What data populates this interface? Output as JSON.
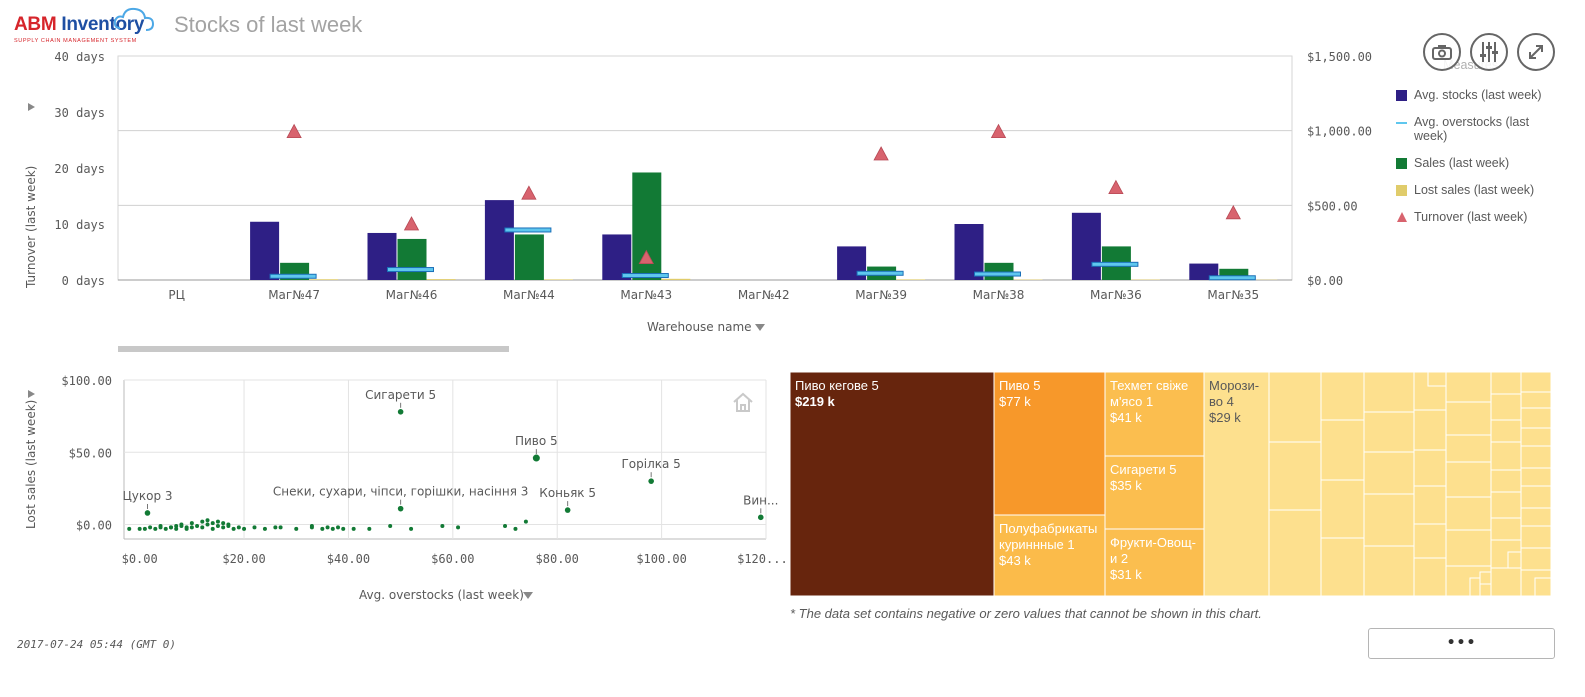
{
  "header": {
    "logo_text_1": "ABM",
    "logo_text_2": " Inventory",
    "logo_subtitle": "SUPPLY CHAIN MANAGEMENT SYSTEM",
    "title": "Stocks of last week"
  },
  "toolbar": {
    "buttons": [
      {
        "name": "snapshot",
        "icon": "camera-icon"
      },
      {
        "name": "settings",
        "icon": "sliders-icon"
      },
      {
        "name": "fullscreen",
        "icon": "expand-icon"
      }
    ]
  },
  "combo_chart": {
    "legend_title": "Measures",
    "legend": [
      {
        "label": "Avg. stocks (last week)",
        "color": "#2e1f85",
        "shape": "square"
      },
      {
        "label": "Avg. overstocks (last week)",
        "color": "#5fc7ee",
        "shape": "line"
      },
      {
        "label": "Sales (last week)",
        "color": "#127a35",
        "shape": "square"
      },
      {
        "label": "Lost sales (last week)",
        "color": "#e0cc6b",
        "shape": "square"
      },
      {
        "label": "Turnover (last week)",
        "color": "#d8636e",
        "shape": "triangle"
      }
    ],
    "y_left_label": "Turnover (last week)",
    "x_label": "Warehouse name",
    "y_left_ticks": [
      "40 days",
      "30 days",
      "20 days",
      "10 days",
      "0 days"
    ],
    "y_right_ticks": [
      "$1,500.00",
      "$1,000.00",
      "$500.00",
      "$0.00"
    ]
  },
  "chart_data": [
    {
      "type": "bar",
      "categories": [
        "РЦ",
        "Маг№47",
        "Маг№46",
        "Маг№44",
        "Маг№43",
        "Маг№42",
        "Маг№39",
        "Маг№38",
        "Маг№36",
        "Маг№35"
      ],
      "xlabel": "Warehouse name",
      "ylabel": "Turnover (last week)",
      "ylim_left": [
        0,
        40
      ],
      "ylim_right": [
        0,
        1500
      ],
      "series": [
        {
          "name": "Avg. stocks (last week)",
          "axis": "right",
          "values": [
            0,
            390,
            315,
            535,
            305,
            0,
            225,
            375,
            450,
            110
          ]
        },
        {
          "name": "Avg. overstocks (last week)",
          "axis": "right",
          "values": [
            0,
            25,
            70,
            335,
            30,
            0,
            45,
            40,
            105,
            15
          ]
        },
        {
          "name": "Sales (last week)",
          "axis": "right",
          "values": [
            0,
            115,
            275,
            305,
            720,
            0,
            90,
            115,
            225,
            75
          ]
        },
        {
          "name": "Lost sales (last week)",
          "axis": "right",
          "values": [
            0,
            5,
            6,
            4,
            8,
            0,
            4,
            3,
            3,
            2
          ]
        },
        {
          "name": "Turnover (last week)",
          "axis": "left",
          "values": [
            null,
            26.5,
            10,
            15.5,
            4,
            null,
            22.5,
            26.5,
            16.5,
            12
          ]
        }
      ],
      "legend": "right",
      "grid": true
    },
    {
      "type": "scatter",
      "xlabel": "Avg. overstocks (last week)",
      "ylabel": "Lost sales (last week)",
      "xlim": [
        -3,
        120
      ],
      "ylim": [
        -10,
        100
      ],
      "x_ticks": [
        "$0.00",
        "$20.00",
        "$40.00",
        "$60.00",
        "$80.00",
        "$100.00",
        "$120...."
      ],
      "y_ticks": [
        "$100.00",
        "$50.00",
        "$0.00"
      ],
      "labeled_points": [
        {
          "label": "Сигарети 5",
          "x": 50,
          "y": 78
        },
        {
          "label": "Пиво 5",
          "x": 76,
          "y": 46
        },
        {
          "label": "Горілка 5",
          "x": 98,
          "y": 30
        },
        {
          "label": "Цукор 3",
          "x": 1.5,
          "y": 8
        },
        {
          "label": "Снеки, сухари, чіпси, горішки, насіння 3",
          "x": 50,
          "y": 11
        },
        {
          "label": "Коньяк 5",
          "x": 82,
          "y": 10
        },
        {
          "label": "Вин...",
          "x": 119,
          "y": 5
        }
      ],
      "points": [
        [
          -2,
          -3
        ],
        [
          0,
          -3
        ],
        [
          1,
          -3
        ],
        [
          2,
          -2
        ],
        [
          3,
          -3
        ],
        [
          4,
          -2
        ],
        [
          5,
          -3
        ],
        [
          6,
          -2
        ],
        [
          7,
          -3
        ],
        [
          8,
          -1
        ],
        [
          9,
          -3
        ],
        [
          10,
          -2
        ],
        [
          11,
          -1
        ],
        [
          12,
          -2
        ],
        [
          13,
          0
        ],
        [
          14,
          -3
        ],
        [
          15,
          -1
        ],
        [
          16,
          -2
        ],
        [
          17,
          0
        ],
        [
          18,
          -3
        ],
        [
          19,
          -2
        ],
        [
          20,
          -3
        ],
        [
          22,
          -2
        ],
        [
          24,
          -3
        ],
        [
          27,
          -2
        ],
        [
          30,
          -3
        ],
        [
          33,
          -1
        ],
        [
          35,
          -3
        ],
        [
          36,
          -2
        ],
        [
          37,
          -3
        ],
        [
          38,
          -2
        ],
        [
          39,
          -3
        ],
        [
          41,
          -3
        ],
        [
          44,
          -3
        ],
        [
          48,
          -1
        ],
        [
          52,
          -3
        ],
        [
          58,
          -1
        ],
        [
          61,
          -2
        ],
        [
          70,
          -1
        ],
        [
          72,
          -3
        ],
        [
          74,
          2
        ],
        [
          10,
          1
        ],
        [
          12,
          2
        ],
        [
          13,
          3
        ],
        [
          14,
          1
        ],
        [
          15,
          2
        ],
        [
          7,
          -1
        ],
        [
          8,
          0
        ],
        [
          9,
          -2
        ],
        [
          16,
          1
        ],
        [
          17,
          -1
        ],
        [
          4,
          -1
        ],
        [
          6,
          -2
        ],
        [
          26,
          -2
        ],
        [
          33,
          -2
        ]
      ]
    },
    {
      "type": "treemap",
      "cells": [
        {
          "label": "Пиво кегове 5",
          "value_label": "$219 k",
          "value": 219
        },
        {
          "label": "Пиво 5",
          "value_label": "$77 k",
          "value": 77
        },
        {
          "label": "Полуфабрикаты куриннные 1",
          "value_label": "$43 k",
          "value": 43
        },
        {
          "label": "Техмет свіже м'ясо 1",
          "value_label": "$41 k",
          "value": 41
        },
        {
          "label": "Сигарети 5",
          "value_label": "$35 k",
          "value": 35
        },
        {
          "label": "Фрукти-Овощи 2",
          "value_label": "$31 k",
          "value": 31
        },
        {
          "label": "Морози-во 4",
          "value_label": "$29 k",
          "value": 29
        }
      ]
    }
  ],
  "treemap": {
    "note": "* The data set contains negative or zero values that cannot be shown in this chart.",
    "labels": [
      {
        "name": "Пиво кегове 5",
        "value": "$219 k"
      },
      {
        "name": "Пиво 5",
        "value": "$77 k"
      },
      {
        "name": "Полуфабрикаты куриннные 1",
        "line1": "Полуфабрикаты",
        "line2": "куриннные 1",
        "value": "$43 k"
      },
      {
        "name": "Техмет свіже м'ясо 1",
        "line1": "Техмет свіже",
        "line2": "м'ясо 1",
        "value": "$41 k"
      },
      {
        "name": "Сигарети 5",
        "value": "$35 k"
      },
      {
        "name": "Фрукти-Овощи 2",
        "line1": "Фрукти-Овощ-",
        "line2": "и 2",
        "value": "$31 k"
      },
      {
        "name": "Морози-во 4",
        "line1": "Морози-",
        "line2": "во 4",
        "value": "$29 k"
      }
    ]
  },
  "footer": {
    "timestamp": "2017-07-24 05:44 (GMT 0)",
    "more_button": "•••"
  }
}
